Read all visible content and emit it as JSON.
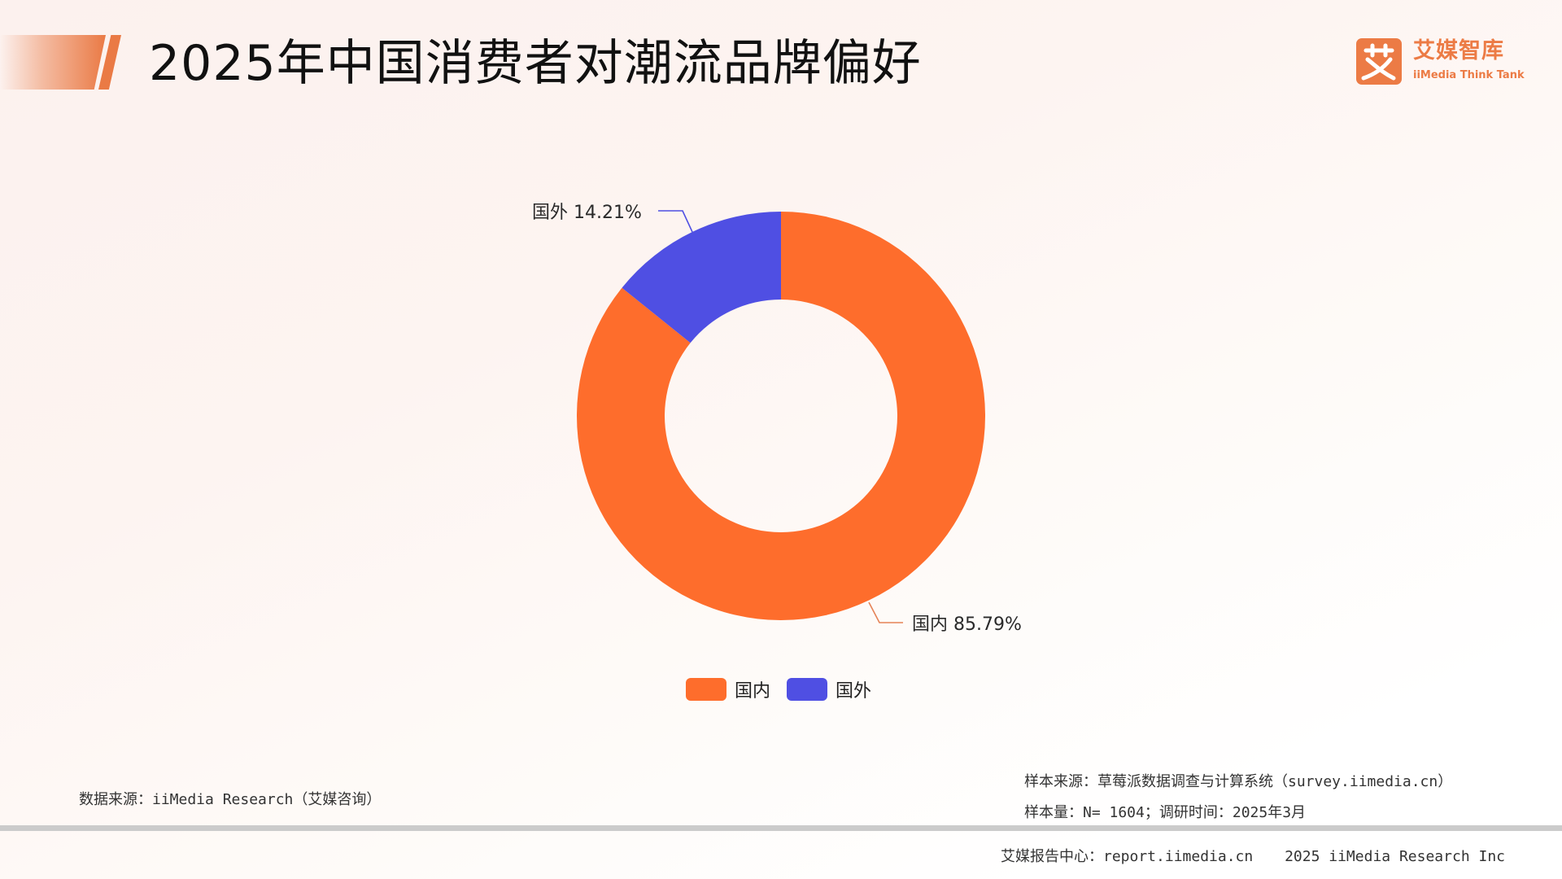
{
  "header": {
    "title": "2025年中国消费者对潮流品牌偏好",
    "logo": {
      "glyph": "艾",
      "name_cn": "艾媒智库",
      "name_en": "iiMedia Think Tank",
      "color": "#ec7b45"
    },
    "accent_color": "#ea7a45"
  },
  "chart_data": {
    "type": "pie",
    "variant": "donut",
    "title": "2025年中国消费者对潮流品牌偏好",
    "categories": [
      "国内",
      "国外"
    ],
    "values": [
      85.79,
      14.21
    ],
    "unit": "%",
    "colors": [
      "#fe6d2c",
      "#4f4fe3"
    ],
    "data_labels": [
      "国内 85.79%",
      "国外 14.21%"
    ],
    "legend": {
      "position": "bottom",
      "entries": [
        "国内",
        "国外"
      ]
    },
    "start_angle_deg": 90,
    "direction": "clockwise",
    "inner_radius_ratio": 0.57
  },
  "labels": {
    "domestic": "国内 85.79%",
    "foreign": "国外 14.21%"
  },
  "legend": {
    "items": [
      {
        "label": "国内",
        "color": "#fe6d2c"
      },
      {
        "label": "国外",
        "color": "#4f4fe3"
      }
    ]
  },
  "sources": {
    "data_source": "数据来源：iiMedia Research（艾媒咨询）",
    "sample_source": "样本来源：草莓派数据调查与计算系统（survey.iimedia.cn）",
    "sample_size": "样本量：N= 1604；调研时间：2025年3月"
  },
  "footer": {
    "report_center": "艾媒报告中心：report.iimedia.cn",
    "copyright": "2025 iiMedia Research Inc"
  }
}
